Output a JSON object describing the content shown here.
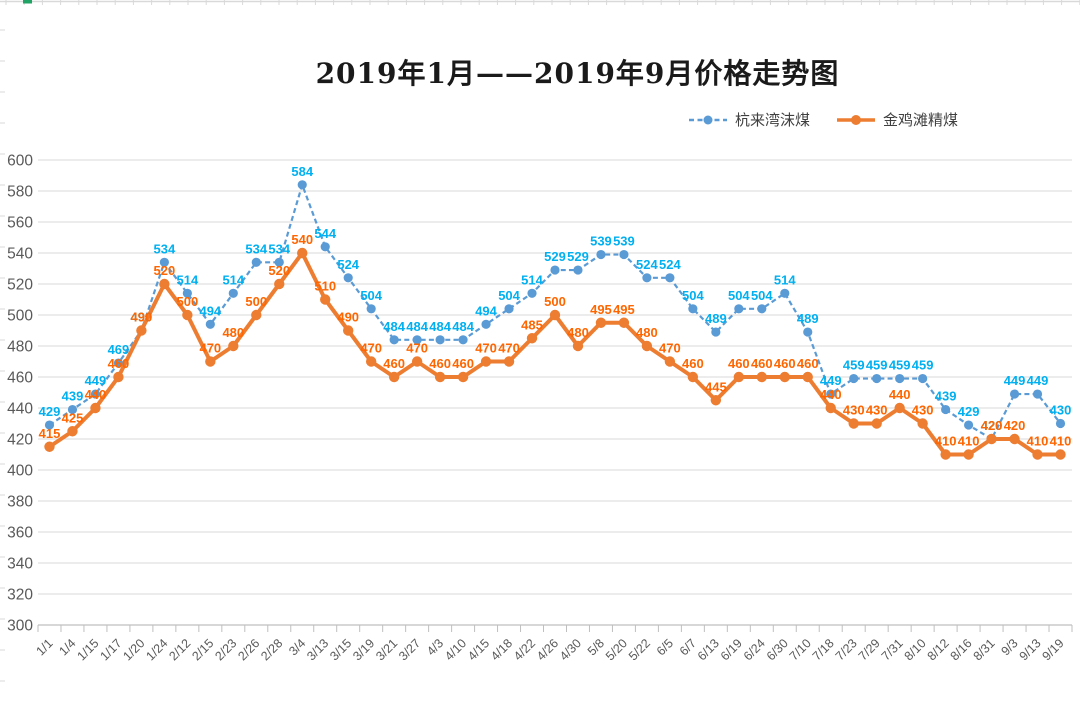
{
  "title": "2019年1月——2019年9月价格走势图",
  "legend": {
    "items": [
      {
        "label": "杭来湾沫煤"
      },
      {
        "label": "金鸡滩精煤"
      }
    ]
  },
  "chart_data": {
    "type": "line",
    "title": "2019年1月——2019年9月价格走势图",
    "categories": [
      "1/1",
      "1/4",
      "1/15",
      "1/17",
      "1/20",
      "1/24",
      "2/12",
      "2/15",
      "2/23",
      "2/26",
      "2/28",
      "3/4",
      "3/13",
      "3/15",
      "3/19",
      "3/21",
      "3/27",
      "4/3",
      "4/10",
      "4/15",
      "4/18",
      "4/22",
      "4/26",
      "4/30",
      "5/8",
      "5/20",
      "5/22",
      "6/5",
      "6/7",
      "6/13",
      "6/19",
      "6/24",
      "6/30",
      "7/10",
      "7/18",
      "7/23",
      "7/29",
      "7/31",
      "8/10",
      "8/12",
      "8/16",
      "8/31",
      "9/3",
      "9/13",
      "9/19"
    ],
    "series": [
      {
        "key": "hanglaiwan-momei",
        "name": "杭来湾沫煤",
        "color": "#5B9BD5",
        "label_color": "#00B0F0",
        "line_style": "dashed",
        "marker": "circle",
        "values": [
          429,
          439,
          449,
          469,
          490,
          534,
          514,
          494,
          514,
          534,
          534,
          584,
          544,
          524,
          504,
          484,
          484,
          484,
          484,
          494,
          504,
          514,
          529,
          529,
          539,
          539,
          524,
          524,
          504,
          489,
          504,
          504,
          514,
          489,
          449,
          459,
          459,
          459,
          459,
          439,
          429,
          420,
          449,
          449,
          430
        ]
      },
      {
        "key": "jinjitan-jingmei",
        "name": "金鸡滩精煤",
        "color": "#ED7D31",
        "label_color": "#FF6600",
        "line_style": "solid",
        "marker": "circle",
        "values": [
          415,
          425,
          440,
          460,
          490,
          520,
          500,
          470,
          480,
          500,
          520,
          540,
          510,
          490,
          470,
          460,
          470,
          460,
          460,
          470,
          470,
          485,
          500,
          480,
          495,
          495,
          480,
          470,
          460,
          445,
          460,
          460,
          460,
          460,
          440,
          430,
          430,
          440,
          430,
          410,
          410,
          420,
          420,
          410,
          410
        ]
      }
    ],
    "ylim": [
      300,
      600
    ],
    "ytick_step": 20,
    "yticks": [
      300,
      320,
      340,
      360,
      380,
      400,
      420,
      440,
      460,
      480,
      500,
      520,
      540,
      560,
      580,
      600
    ],
    "grid": "horizontal",
    "legend_position": "top-right",
    "grid_color": "#D9D9D9",
    "axis_color": "#BFBFBF",
    "tick_label_color": "#595959",
    "spreadsheet_accent_color": "#21A366"
  }
}
